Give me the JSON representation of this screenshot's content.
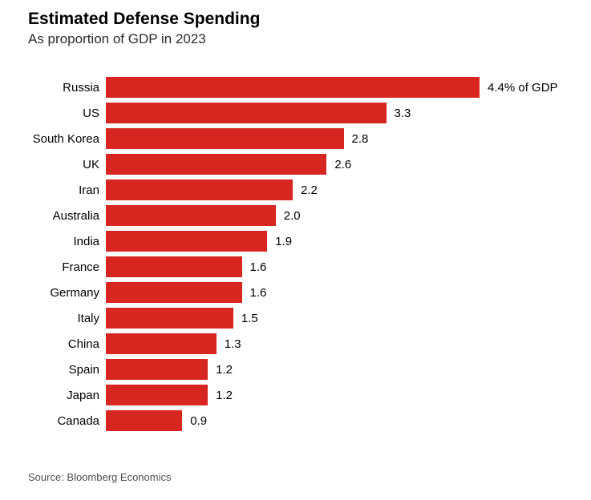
{
  "header": {
    "title": "Estimated Defense Spending",
    "subtitle": "As proportion of GDP in 2023"
  },
  "chart_data": {
    "type": "bar",
    "orientation": "horizontal",
    "title": "Estimated Defense Spending",
    "subtitle": "As proportion of GDP in 2023",
    "xlabel": "",
    "ylabel": "",
    "xlim": [
      0,
      4.4
    ],
    "grid": false,
    "legend": false,
    "categories": [
      "Russia",
      "US",
      "South Korea",
      "UK",
      "Iran",
      "Australia",
      "India",
      "France",
      "Germany",
      "Italy",
      "China",
      "Spain",
      "Japan",
      "Canada"
    ],
    "values": [
      4.4,
      3.3,
      2.8,
      2.6,
      2.2,
      2.0,
      1.9,
      1.6,
      1.6,
      1.5,
      1.3,
      1.2,
      1.2,
      0.9
    ],
    "value_labels": [
      "4.4% of GDP",
      "3.3",
      "2.8",
      "2.6",
      "2.2",
      "2.0",
      "1.9",
      "1.6",
      "1.6",
      "1.5",
      "1.3",
      "1.2",
      "1.2",
      "0.9"
    ],
    "bar_color": "#d7261f"
  },
  "footer": {
    "source": "Source: Bloomberg Economics"
  },
  "colors": {
    "bar": "#d7261f",
    "title": "#000000",
    "subtitle": "#2b2b2b",
    "source": "#4f4f4f",
    "background": "#ffffff"
  }
}
